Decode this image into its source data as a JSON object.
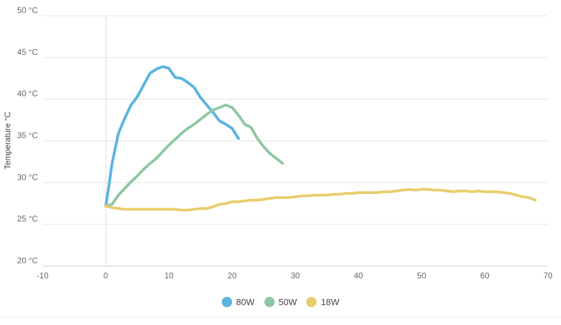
{
  "chart_data": {
    "type": "line",
    "title": "",
    "xlabel": "",
    "ylabel": "Temperature °C",
    "xlim": [
      -10,
      70
    ],
    "ylim": [
      20,
      50
    ],
    "x_ticks": [
      -10,
      0,
      10,
      20,
      30,
      40,
      50,
      60,
      70
    ],
    "y_ticks": [
      20,
      25,
      30,
      35,
      40,
      45,
      50
    ],
    "y_tick_labels": [
      "20 °C",
      "25 °C",
      "30 °C",
      "35 °C",
      "40 °C",
      "45 °C",
      "50 °C"
    ],
    "grid": true,
    "legend_position": "bottom",
    "series": [
      {
        "name": "80W",
        "color": "#5ab4e0",
        "x": [
          0,
          0.5,
          1,
          2,
          3,
          4,
          5,
          6,
          7,
          8,
          9,
          10,
          11,
          12,
          13,
          14,
          15,
          16,
          17,
          18,
          19,
          20,
          21
        ],
        "y": [
          27.2,
          29.6,
          32.3,
          35.9,
          37.7,
          39.3,
          40.3,
          41.7,
          43.1,
          43.6,
          43.9,
          43.7,
          42.6,
          42.5,
          42.0,
          41.4,
          40.2,
          39.3,
          38.4,
          37.4,
          37.0,
          36.5,
          35.3
        ]
      },
      {
        "name": "50W",
        "color": "#8dc7a2",
        "x": [
          0,
          1,
          2,
          3,
          4,
          5,
          6,
          7,
          8,
          9,
          10,
          11,
          12,
          13,
          14,
          15,
          16,
          17,
          18,
          19,
          20,
          21,
          22,
          23,
          24,
          25,
          26,
          27,
          28
        ],
        "y": [
          27.2,
          27.4,
          28.5,
          29.3,
          30.1,
          30.8,
          31.6,
          32.3,
          32.9,
          33.7,
          34.5,
          35.2,
          35.9,
          36.5,
          37.0,
          37.6,
          38.2,
          38.7,
          39.0,
          39.3,
          39.0,
          38.1,
          37.0,
          36.6,
          35.3,
          34.3,
          33.5,
          32.9,
          32.3
        ]
      },
      {
        "name": "18W",
        "color": "#e9cd6c",
        "x": [
          0,
          1,
          2,
          3,
          4,
          5,
          6,
          7,
          8,
          9,
          10,
          11,
          12,
          13,
          14,
          15,
          16,
          17,
          18,
          19,
          20,
          21,
          22,
          23,
          24,
          25,
          26,
          27,
          28,
          29,
          30,
          31,
          32,
          33,
          34,
          35,
          36,
          37,
          38,
          39,
          40,
          41,
          42,
          43,
          44,
          45,
          46,
          47,
          48,
          49,
          50,
          51,
          52,
          53,
          54,
          55,
          56,
          57,
          58,
          59,
          60,
          61,
          62,
          63,
          64,
          65,
          66,
          67,
          68
        ],
        "y": [
          27.2,
          27.0,
          26.9,
          26.8,
          26.8,
          26.8,
          26.8,
          26.8,
          26.8,
          26.8,
          26.8,
          26.8,
          26.7,
          26.7,
          26.8,
          26.9,
          26.9,
          27.1,
          27.4,
          27.5,
          27.7,
          27.7,
          27.8,
          27.9,
          27.9,
          28.0,
          28.1,
          28.2,
          28.2,
          28.2,
          28.3,
          28.4,
          28.4,
          28.5,
          28.5,
          28.5,
          28.6,
          28.6,
          28.7,
          28.7,
          28.8,
          28.8,
          28.8,
          28.8,
          28.9,
          28.9,
          29.0,
          29.1,
          29.2,
          29.1,
          29.2,
          29.2,
          29.1,
          29.1,
          29.0,
          28.9,
          29.0,
          29.0,
          28.9,
          29.0,
          28.9,
          28.9,
          28.9,
          28.8,
          28.7,
          28.5,
          28.3,
          28.2,
          27.9
        ]
      }
    ]
  }
}
